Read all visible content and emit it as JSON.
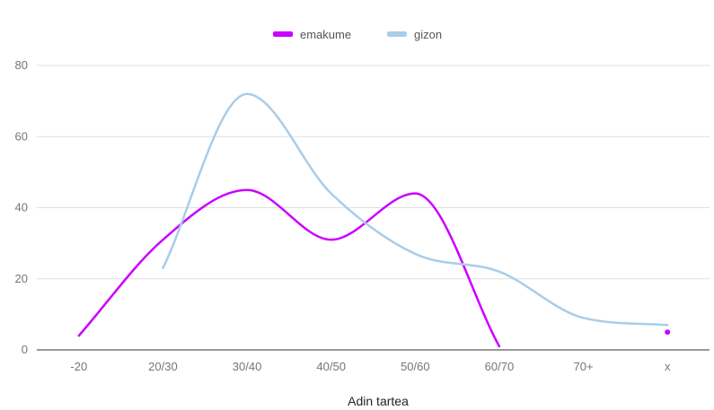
{
  "chart_data": {
    "type": "line",
    "title": "",
    "xlabel": "Adin tartea",
    "ylabel": "",
    "categories": [
      "-20",
      "20/30",
      "30/40",
      "40/50",
      "50/60",
      "60/70",
      "70+",
      "x"
    ],
    "ylim": [
      0,
      80
    ],
    "yticks": [
      0,
      20,
      40,
      60,
      80
    ],
    "grid": true,
    "legend_position": "top",
    "smooth": true,
    "series": [
      {
        "name": "emakume",
        "color": "#cc00ff",
        "values": [
          4,
          31,
          45,
          31,
          44,
          1,
          null,
          5
        ]
      },
      {
        "name": "gizon",
        "color": "#a9cde9",
        "values": [
          null,
          23,
          72,
          44,
          27,
          22,
          9,
          7
        ]
      }
    ]
  }
}
